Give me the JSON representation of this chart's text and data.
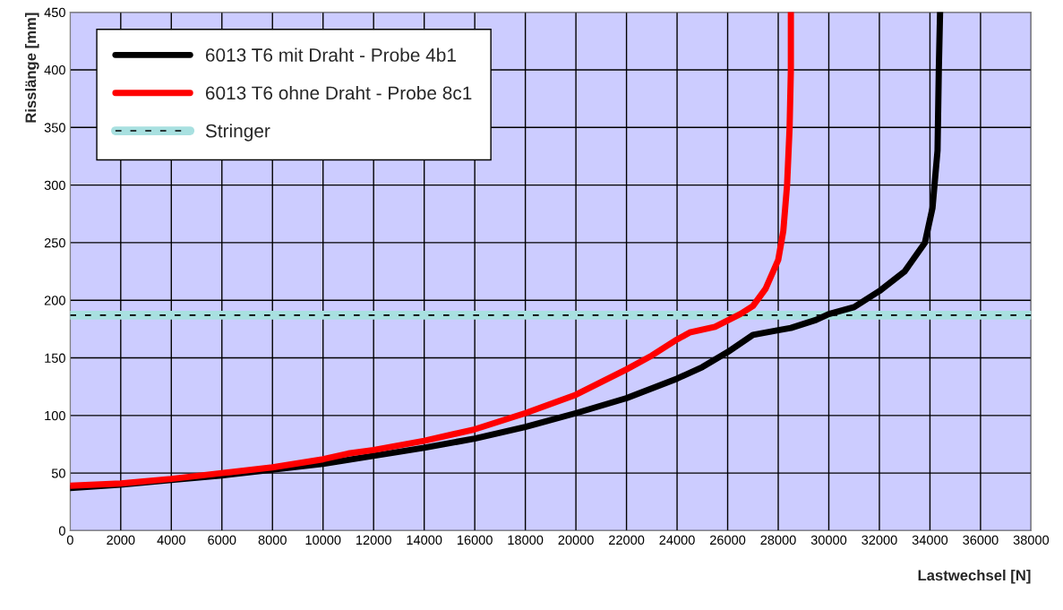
{
  "chart_data": {
    "type": "line",
    "xlabel": "Lastwechsel [N]",
    "ylabel": "Risslänge [mm]",
    "xlim": [
      0,
      38000
    ],
    "xticks": [
      0,
      2000,
      4000,
      6000,
      8000,
      10000,
      12000,
      14000,
      16000,
      18000,
      20000,
      22000,
      24000,
      26000,
      28000,
      30000,
      32000,
      34000,
      36000,
      38000
    ],
    "ylim": [
      0,
      450
    ],
    "yticks": [
      0,
      50,
      100,
      150,
      200,
      250,
      300,
      350,
      400,
      450
    ],
    "grid": true,
    "legend": "top left",
    "marker": "none",
    "line_style": "solid",
    "series": [
      {
        "name": "6013 T6 mit Draht - Probe 4b1",
        "color": "#000000",
        "x": [
          0,
          2000,
          4000,
          6000,
          8000,
          10000,
          12000,
          14000,
          16000,
          18000,
          20000,
          22000,
          24000,
          25000,
          26000,
          27000,
          28000,
          28500,
          29500,
          30000,
          31000,
          32000,
          33000,
          33800,
          34100,
          34300,
          34350,
          34400
        ],
        "values": [
          37,
          40,
          44,
          48,
          53,
          58,
          65,
          72,
          80,
          90,
          102,
          115,
          132,
          142,
          155,
          170,
          174,
          176,
          183,
          188,
          194,
          208,
          225,
          250,
          280,
          330,
          400,
          450
        ]
      },
      {
        "name": "6013 T6 ohne Draht - Probe 8c1",
        "color": "#ff0000",
        "x": [
          0,
          2000,
          4000,
          6000,
          8000,
          10000,
          11000,
          12000,
          14000,
          16000,
          18000,
          20000,
          22000,
          23000,
          24000,
          24500,
          25500,
          26500,
          27000,
          27500,
          28000,
          28200,
          28350,
          28450,
          28500,
          28500
        ],
        "values": [
          39,
          41,
          45,
          50,
          55,
          62,
          67,
          70,
          78,
          88,
          102,
          118,
          140,
          152,
          166,
          172,
          177,
          188,
          195,
          210,
          235,
          260,
          300,
          350,
          400,
          450
        ]
      }
    ],
    "ref_lines": [
      {
        "axis": "y",
        "value": 187,
        "label": "Stringer",
        "color": "#a8e0e0",
        "line_style": "solid"
      },
      {
        "axis": "y",
        "value": 187,
        "color": "#000000",
        "line_style": "dashed"
      }
    ]
  }
}
